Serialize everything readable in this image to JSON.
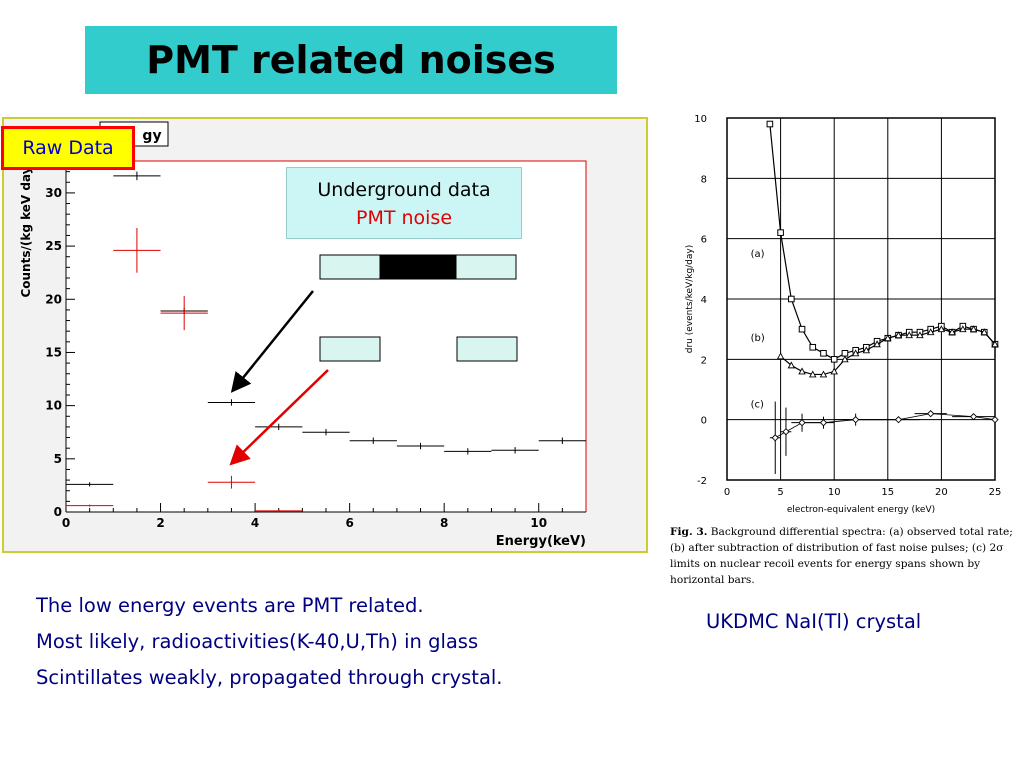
{
  "slide": {
    "title": "PMT related noises",
    "bullets": [
      "The low energy events are PMT related.",
      "Most likely, radioactivities(K-40,U,Th) in glass",
      "Scintillates weakly, propagated through crystal."
    ],
    "right_label": "UKDMC NaI(Tl) crystal",
    "caption_fig": "Fig. 3.",
    "caption_text": "Background differential spectra: (a) observed total rate; (b) after subtraction of distribution of fast noise pulses; (c) 2σ limits on nuclear recoil events for energy spans shown by horizontal bars."
  },
  "badge": {
    "label": "Raw Data",
    "text_color": "#0000cc",
    "bg": "#ffff00",
    "border": "#ff0000"
  },
  "legend": {
    "line1": "Underground data",
    "line2": "PMT noise"
  },
  "colors": {
    "title_bg": "#33cccc",
    "panel_bg": "#f2f2f2",
    "black": "#000000",
    "red": "#e00000",
    "text_blue": "#000080"
  },
  "chart_data": [
    {
      "type": "scatter",
      "title": "gy",
      "xlabel": "Energy(keV)",
      "ylabel": "Counts/(kg keV day)",
      "xlim": [
        0,
        11
      ],
      "ylim": [
        0,
        33
      ],
      "xticks": [
        0,
        2,
        4,
        6,
        8,
        10
      ],
      "yticks": [
        0,
        5,
        10,
        15,
        20,
        25,
        30
      ],
      "series": [
        {
          "name": "Underground data",
          "color": "#000000",
          "points": [
            {
              "x": 0.5,
              "y": 2.6,
              "xerr": 0.5,
              "yerr": 0.2
            },
            {
              "x": 1.5,
              "y": 31.6,
              "xerr": 0.5,
              "yerr": 0.4
            },
            {
              "x": 2.5,
              "y": 18.9,
              "xerr": 0.5,
              "yerr": 0.3
            },
            {
              "x": 3.5,
              "y": 10.3,
              "xerr": 0.5,
              "yerr": 0.3
            },
            {
              "x": 4.5,
              "y": 8.0,
              "xerr": 0.5,
              "yerr": 0.3
            },
            {
              "x": 5.5,
              "y": 7.5,
              "xerr": 0.5,
              "yerr": 0.3
            },
            {
              "x": 6.5,
              "y": 6.7,
              "xerr": 0.5,
              "yerr": 0.3
            },
            {
              "x": 7.5,
              "y": 6.2,
              "xerr": 0.5,
              "yerr": 0.3
            },
            {
              "x": 8.5,
              "y": 5.7,
              "xerr": 0.5,
              "yerr": 0.3
            },
            {
              "x": 9.5,
              "y": 5.8,
              "xerr": 0.5,
              "yerr": 0.3
            },
            {
              "x": 10.5,
              "y": 6.7,
              "xerr": 0.5,
              "yerr": 0.3
            }
          ]
        },
        {
          "name": "PMT noise",
          "color": "#e00000",
          "points": [
            {
              "x": 0.5,
              "y": 0.6,
              "xerr": 0.5,
              "yerr": 0.1
            },
            {
              "x": 1.5,
              "y": 24.6,
              "xerr": 0.5,
              "yerr": 2.1
            },
            {
              "x": 2.5,
              "y": 18.7,
              "xerr": 0.5,
              "yerr": 1.6
            },
            {
              "x": 3.5,
              "y": 2.8,
              "xerr": 0.5,
              "yerr": 0.6
            },
            {
              "x": 4.5,
              "y": 0.1,
              "xerr": 0.5,
              "yerr": 0.1
            }
          ]
        }
      ]
    },
    {
      "type": "line",
      "xlabel": "electron-equivalent energy (keV)",
      "ylabel": "dru (events/keV/kg/day)",
      "xlim": [
        0,
        25
      ],
      "ylim": [
        -2,
        10
      ],
      "xticks": [
        0,
        5,
        10,
        15,
        20,
        25
      ],
      "yticks": [
        -2,
        0,
        2,
        4,
        6,
        8,
        10
      ],
      "grid": true,
      "series": [
        {
          "name": "(a)",
          "marker": "square",
          "points": [
            [
              4.0,
              9.8
            ],
            [
              5.0,
              6.2
            ],
            [
              6.0,
              4.0
            ],
            [
              7.0,
              3.0
            ],
            [
              8.0,
              2.4
            ],
            [
              9.0,
              2.2
            ],
            [
              10.0,
              2.0
            ],
            [
              11.0,
              2.2
            ],
            [
              12.0,
              2.3
            ],
            [
              13.0,
              2.4
            ],
            [
              14.0,
              2.6
            ],
            [
              15.0,
              2.7
            ],
            [
              16.0,
              2.8
            ],
            [
              17.0,
              2.9
            ],
            [
              18.0,
              2.9
            ],
            [
              19.0,
              3.0
            ],
            [
              20.0,
              3.1
            ],
            [
              21.0,
              2.9
            ],
            [
              22.0,
              3.1
            ],
            [
              23.0,
              3.0
            ],
            [
              24.0,
              2.9
            ],
            [
              25.0,
              2.5
            ]
          ]
        },
        {
          "name": "(b)",
          "marker": "triangle",
          "points": [
            [
              5.0,
              2.1
            ],
            [
              6.0,
              1.8
            ],
            [
              7.0,
              1.6
            ],
            [
              8.0,
              1.5
            ],
            [
              9.0,
              1.5
            ],
            [
              10.0,
              1.6
            ],
            [
              11.0,
              2.0
            ],
            [
              12.0,
              2.2
            ],
            [
              13.0,
              2.3
            ],
            [
              14.0,
              2.5
            ],
            [
              15.0,
              2.7
            ],
            [
              16.0,
              2.8
            ],
            [
              17.0,
              2.8
            ],
            [
              18.0,
              2.8
            ],
            [
              19.0,
              2.9
            ],
            [
              20.0,
              3.0
            ],
            [
              21.0,
              2.9
            ],
            [
              22.0,
              3.0
            ],
            [
              23.0,
              3.0
            ],
            [
              24.0,
              2.9
            ],
            [
              25.0,
              2.5
            ]
          ]
        },
        {
          "name": "(c)",
          "marker": "diamond",
          "points": [
            {
              "x": 4.5,
              "y": -0.6,
              "xerr": 0.5,
              "yerr": 1.2
            },
            {
              "x": 5.5,
              "y": -0.4,
              "xerr": 0.5,
              "yerr": 0.8
            },
            {
              "x": 7.0,
              "y": -0.1,
              "xerr": 1.0,
              "yerr": 0.3
            },
            {
              "x": 9.0,
              "y": -0.1,
              "xerr": 1.0,
              "yerr": 0.2
            },
            {
              "x": 12.0,
              "y": 0.0,
              "xerr": 2.0,
              "yerr": 0.2
            },
            {
              "x": 16.0,
              "y": 0.0,
              "xerr": 2.0,
              "yerr": 0.1
            },
            {
              "x": 19.0,
              "y": 0.2,
              "xerr": 1.5,
              "yerr": 0.1
            },
            {
              "x": 23.0,
              "y": 0.1,
              "xerr": 2.0,
              "yerr": 0.1
            },
            {
              "x": 25.0,
              "y": 0.0,
              "xerr": 0.0,
              "yerr": 0.0
            }
          ]
        }
      ]
    }
  ]
}
